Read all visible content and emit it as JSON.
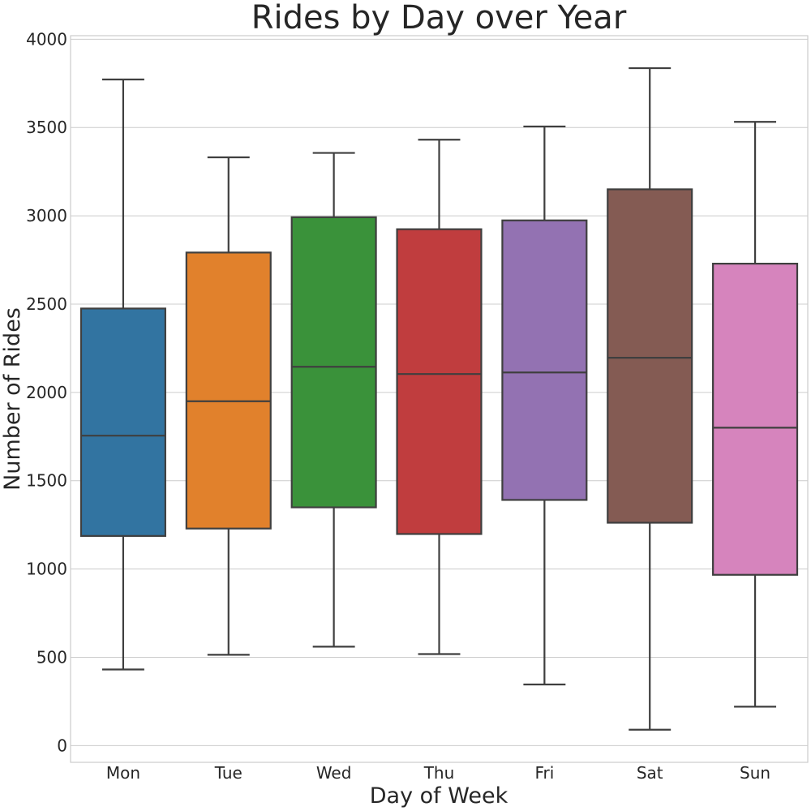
{
  "chart_data": {
    "type": "box",
    "title": "Rides by Day over Year",
    "xlabel": "Day of Week",
    "ylabel": "Number of Rides",
    "ylim": [
      -95,
      4020
    ],
    "yticks": [
      0,
      500,
      1000,
      1500,
      2000,
      2500,
      3000,
      3500,
      4000
    ],
    "grid": true,
    "categories": [
      "Mon",
      "Tue",
      "Wed",
      "Thu",
      "Fri",
      "Sat",
      "Sun"
    ],
    "series": [
      {
        "category": "Mon",
        "min": 431,
        "q1": 1187,
        "median": 1755,
        "q3": 2475,
        "max": 3772,
        "color": "#3274a1"
      },
      {
        "category": "Tue",
        "min": 514,
        "q1": 1229,
        "median": 1950,
        "q3": 2792,
        "max": 3331,
        "color": "#e1812c"
      },
      {
        "category": "Wed",
        "min": 560,
        "q1": 1349,
        "median": 2145,
        "q3": 2992,
        "max": 3356,
        "color": "#3a923a"
      },
      {
        "category": "Thu",
        "min": 518,
        "q1": 1198,
        "median": 2104,
        "q3": 2924,
        "max": 3431,
        "color": "#c03d3e"
      },
      {
        "category": "Fri",
        "min": 346,
        "q1": 1391,
        "median": 2113,
        "q3": 2974,
        "max": 3506,
        "color": "#9372b2"
      },
      {
        "category": "Sat",
        "min": 90,
        "q1": 1262,
        "median": 2196,
        "q3": 3150,
        "max": 3836,
        "color": "#845b53"
      },
      {
        "category": "Sun",
        "min": 220,
        "q1": 967,
        "median": 1800,
        "q3": 2729,
        "max": 3532,
        "color": "#d684bd"
      }
    ]
  }
}
